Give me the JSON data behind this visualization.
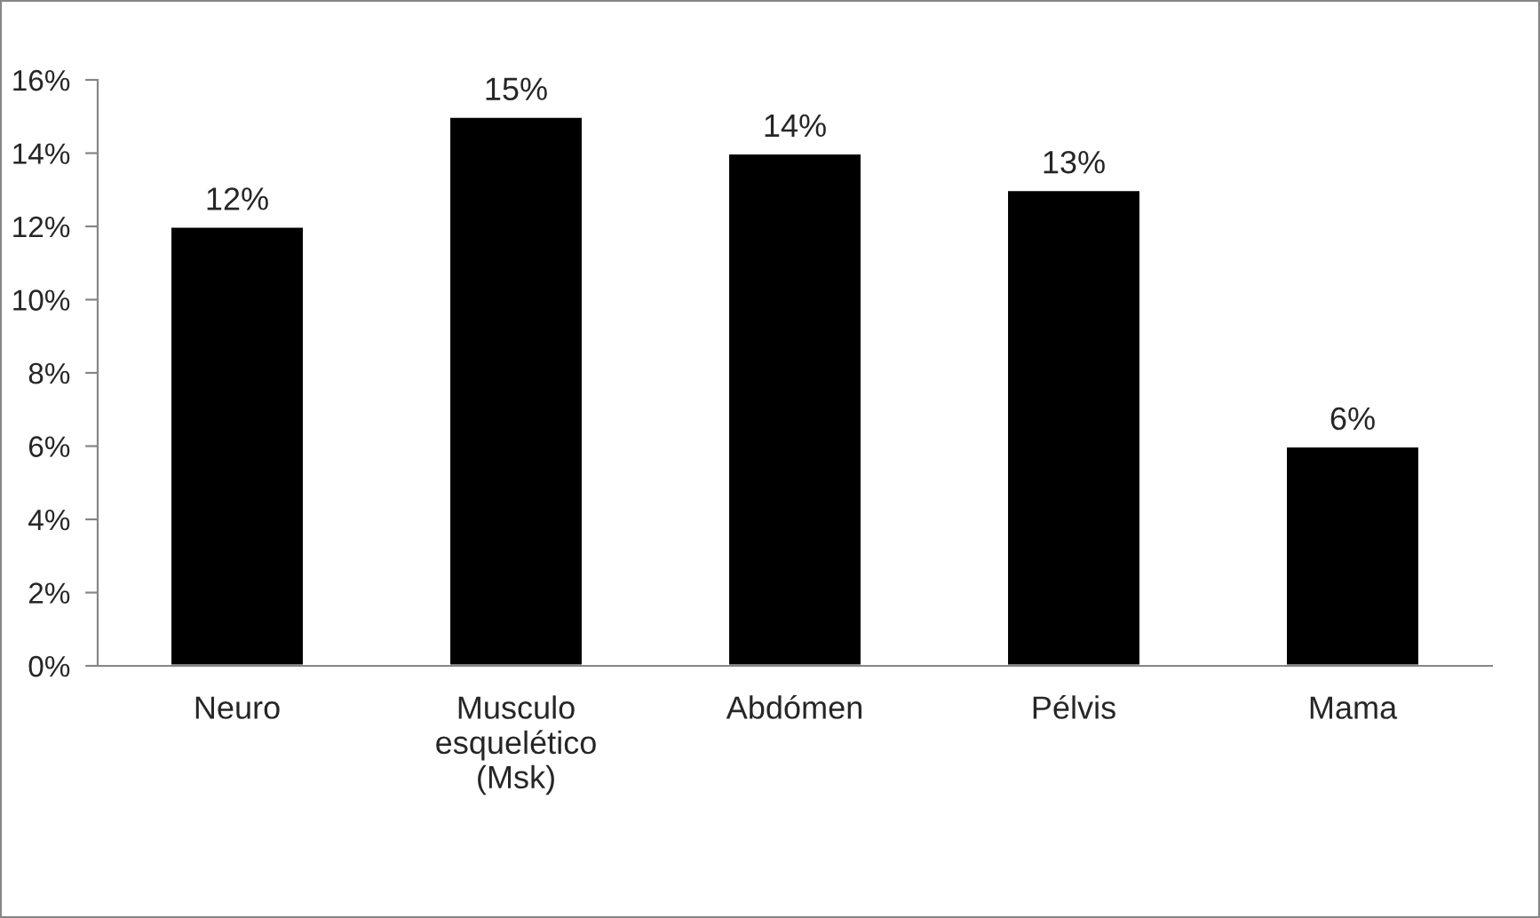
{
  "chart_data": {
    "type": "bar",
    "categories": [
      "Neuro",
      "Musculo\nesquelético\n(Msk)",
      "Abdómen",
      "Pélvis",
      "Mama"
    ],
    "values": [
      12,
      15,
      14,
      13,
      6
    ],
    "value_labels": [
      "12%",
      "15%",
      "14%",
      "13%",
      "6%"
    ],
    "color": "#000000",
    "ylim": [
      0,
      16
    ],
    "yticks": [
      {
        "value": 0,
        "label": "0%"
      },
      {
        "value": 2,
        "label": "2%"
      },
      {
        "value": 4,
        "label": "4%"
      },
      {
        "value": 6,
        "label": "6%"
      },
      {
        "value": 8,
        "label": "8%"
      },
      {
        "value": 10,
        "label": "10%"
      },
      {
        "value": 12,
        "label": "12%"
      },
      {
        "value": 14,
        "label": "14%"
      },
      {
        "value": 16,
        "label": "16%"
      }
    ],
    "grid": false,
    "legend": false
  }
}
